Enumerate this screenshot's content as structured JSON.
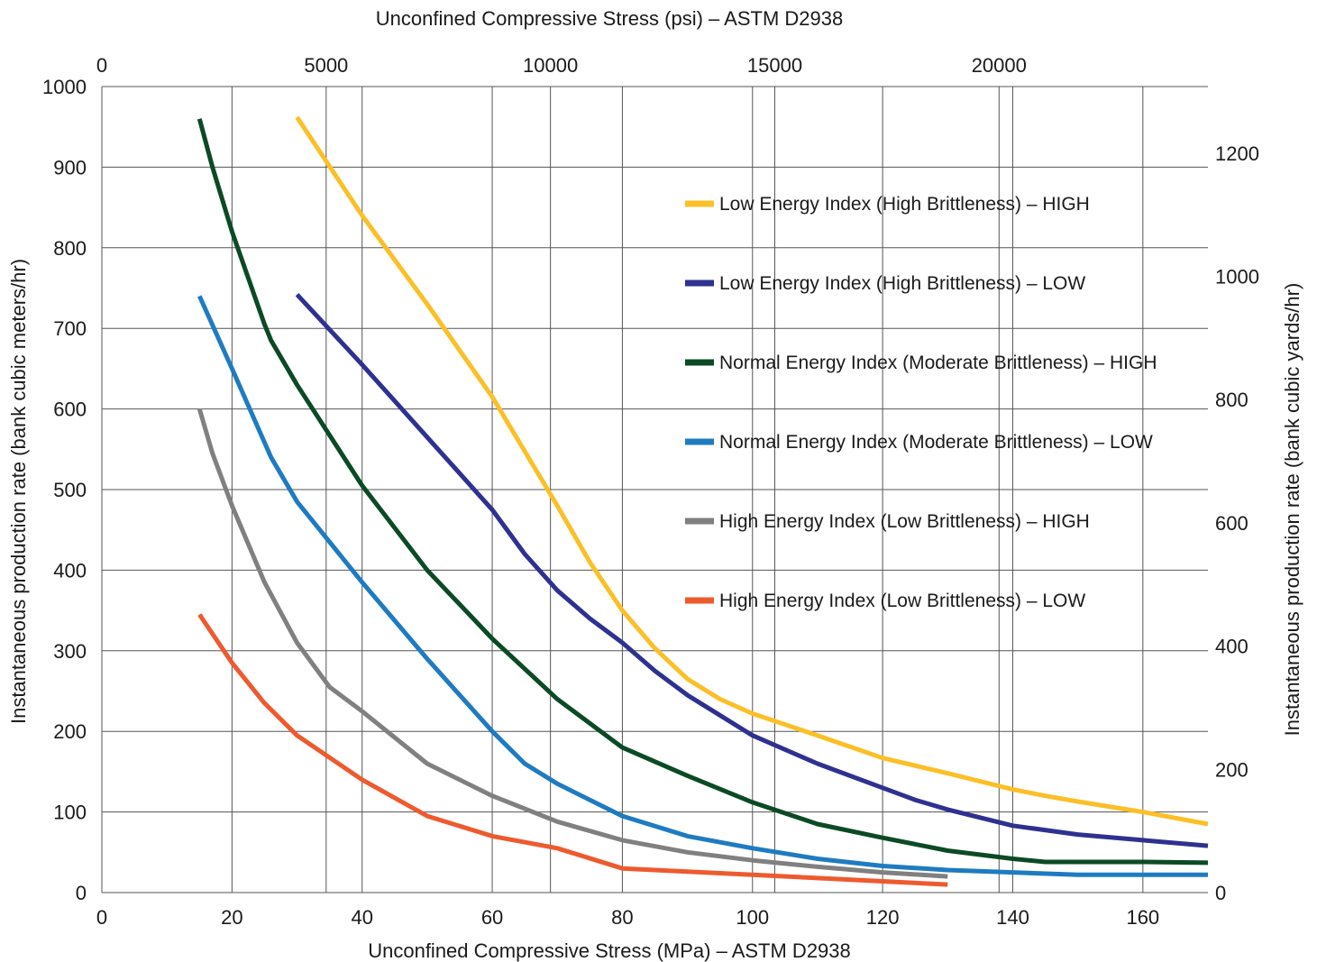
{
  "chart_data": {
    "type": "line",
    "title": "",
    "xlabel": "Unconfined Compressive Stress (MPa) – ASTM D2938",
    "x2label": "Unconfined Compressive Stress (psi) – ASTM D2938",
    "ylabel": "Instantaneous production rate (bank cubic meters/hr)",
    "y2label": "Instantaneous production rate (bank cubic yards/hr)",
    "xlim": [
      0,
      170
    ],
    "ylim": [
      0,
      1000
    ],
    "x2lim": [
      0,
      24656
    ],
    "y2lim": [
      0,
      1308
    ],
    "grid": true,
    "legend_position": "right",
    "x_ticks": [
      "0",
      "20",
      "40",
      "60",
      "80",
      "100",
      "120",
      "140",
      "160"
    ],
    "x_ticks_values": [
      0,
      20,
      40,
      60,
      80,
      100,
      120,
      140,
      160
    ],
    "y_ticks": [
      "0",
      "100",
      "200",
      "300",
      "400",
      "500",
      "600",
      "700",
      "800",
      "900",
      "1000"
    ],
    "y_ticks_values": [
      0,
      100,
      200,
      300,
      400,
      500,
      600,
      700,
      800,
      900,
      1000
    ],
    "x2_ticks": [
      "0",
      "5000",
      "10000",
      "15000",
      "20000"
    ],
    "x2_ticks_values": [
      0,
      5000,
      10000,
      15000,
      20000
    ],
    "y2_ticks": [
      "0",
      "200",
      "400",
      "600",
      "800",
      "1000",
      "1200"
    ],
    "y2_ticks_values": [
      0,
      200,
      400,
      600,
      800,
      1000,
      1200
    ],
    "series": [
      {
        "name": "Low Energy Index (High Brittleness) – HIGH",
        "color": "#fbbf28",
        "x": [
          30,
          40,
          50,
          60,
          70,
          75,
          80,
          85,
          90,
          95,
          100,
          110,
          120,
          130,
          140,
          145,
          150,
          160,
          170
        ],
        "y": [
          962,
          840,
          730,
          615,
          480,
          410,
          350,
          303,
          265,
          240,
          222,
          195,
          167,
          148,
          128,
          120,
          113,
          100,
          85
        ]
      },
      {
        "name": "Low Energy Index (High Brittleness) – LOW",
        "color": "#2e3190",
        "x": [
          30,
          40,
          50,
          60,
          65,
          70,
          75,
          80,
          85,
          90,
          100,
          110,
          120,
          125,
          130,
          140,
          150,
          160,
          170
        ],
        "y": [
          742,
          655,
          565,
          475,
          420,
          375,
          340,
          310,
          275,
          245,
          195,
          160,
          130,
          115,
          103,
          83,
          72,
          65,
          58
        ]
      },
      {
        "name": "Normal Energy Index (Moderate Brittleness) – HIGH",
        "color": "#0b4a25",
        "x": [
          15,
          17,
          20,
          25,
          26,
          30,
          40,
          50,
          60,
          70,
          80,
          90,
          100,
          110,
          120,
          130,
          140,
          145,
          150,
          160,
          170
        ],
        "y": [
          960,
          900,
          820,
          705,
          685,
          630,
          505,
          400,
          315,
          240,
          180,
          145,
          112,
          85,
          68,
          52,
          42,
          38,
          38,
          38,
          37
        ]
      },
      {
        "name": "Normal Energy Index (Moderate Brittleness) – LOW",
        "color": "#1f7bc1",
        "x": [
          15,
          20,
          26,
          30,
          40,
          50,
          60,
          65,
          70,
          80,
          90,
          100,
          110,
          120,
          130,
          140,
          150,
          160,
          170
        ],
        "y": [
          740,
          650,
          540,
          485,
          385,
          290,
          200,
          160,
          135,
          95,
          70,
          55,
          42,
          33,
          28,
          25,
          22,
          22,
          22
        ]
      },
      {
        "name": "High Energy Index (Low Brittleness) – HIGH",
        "color": "#808080",
        "x": [
          15,
          17,
          20,
          25,
          30,
          35,
          40,
          50,
          60,
          70,
          80,
          90,
          100,
          110,
          120,
          130
        ],
        "y": [
          600,
          545,
          480,
          385,
          310,
          255,
          225,
          160,
          120,
          88,
          65,
          50,
          40,
          32,
          25,
          20
        ]
      },
      {
        "name": "High Energy Index (Low Brittleness) – LOW",
        "color": "#ee5a2f",
        "x": [
          15,
          20,
          25,
          30,
          40,
          50,
          60,
          70,
          80,
          90,
          100,
          110,
          120,
          130
        ],
        "y": [
          345,
          285,
          235,
          195,
          140,
          95,
          70,
          55,
          30,
          26,
          22,
          18,
          14,
          10
        ]
      }
    ]
  }
}
